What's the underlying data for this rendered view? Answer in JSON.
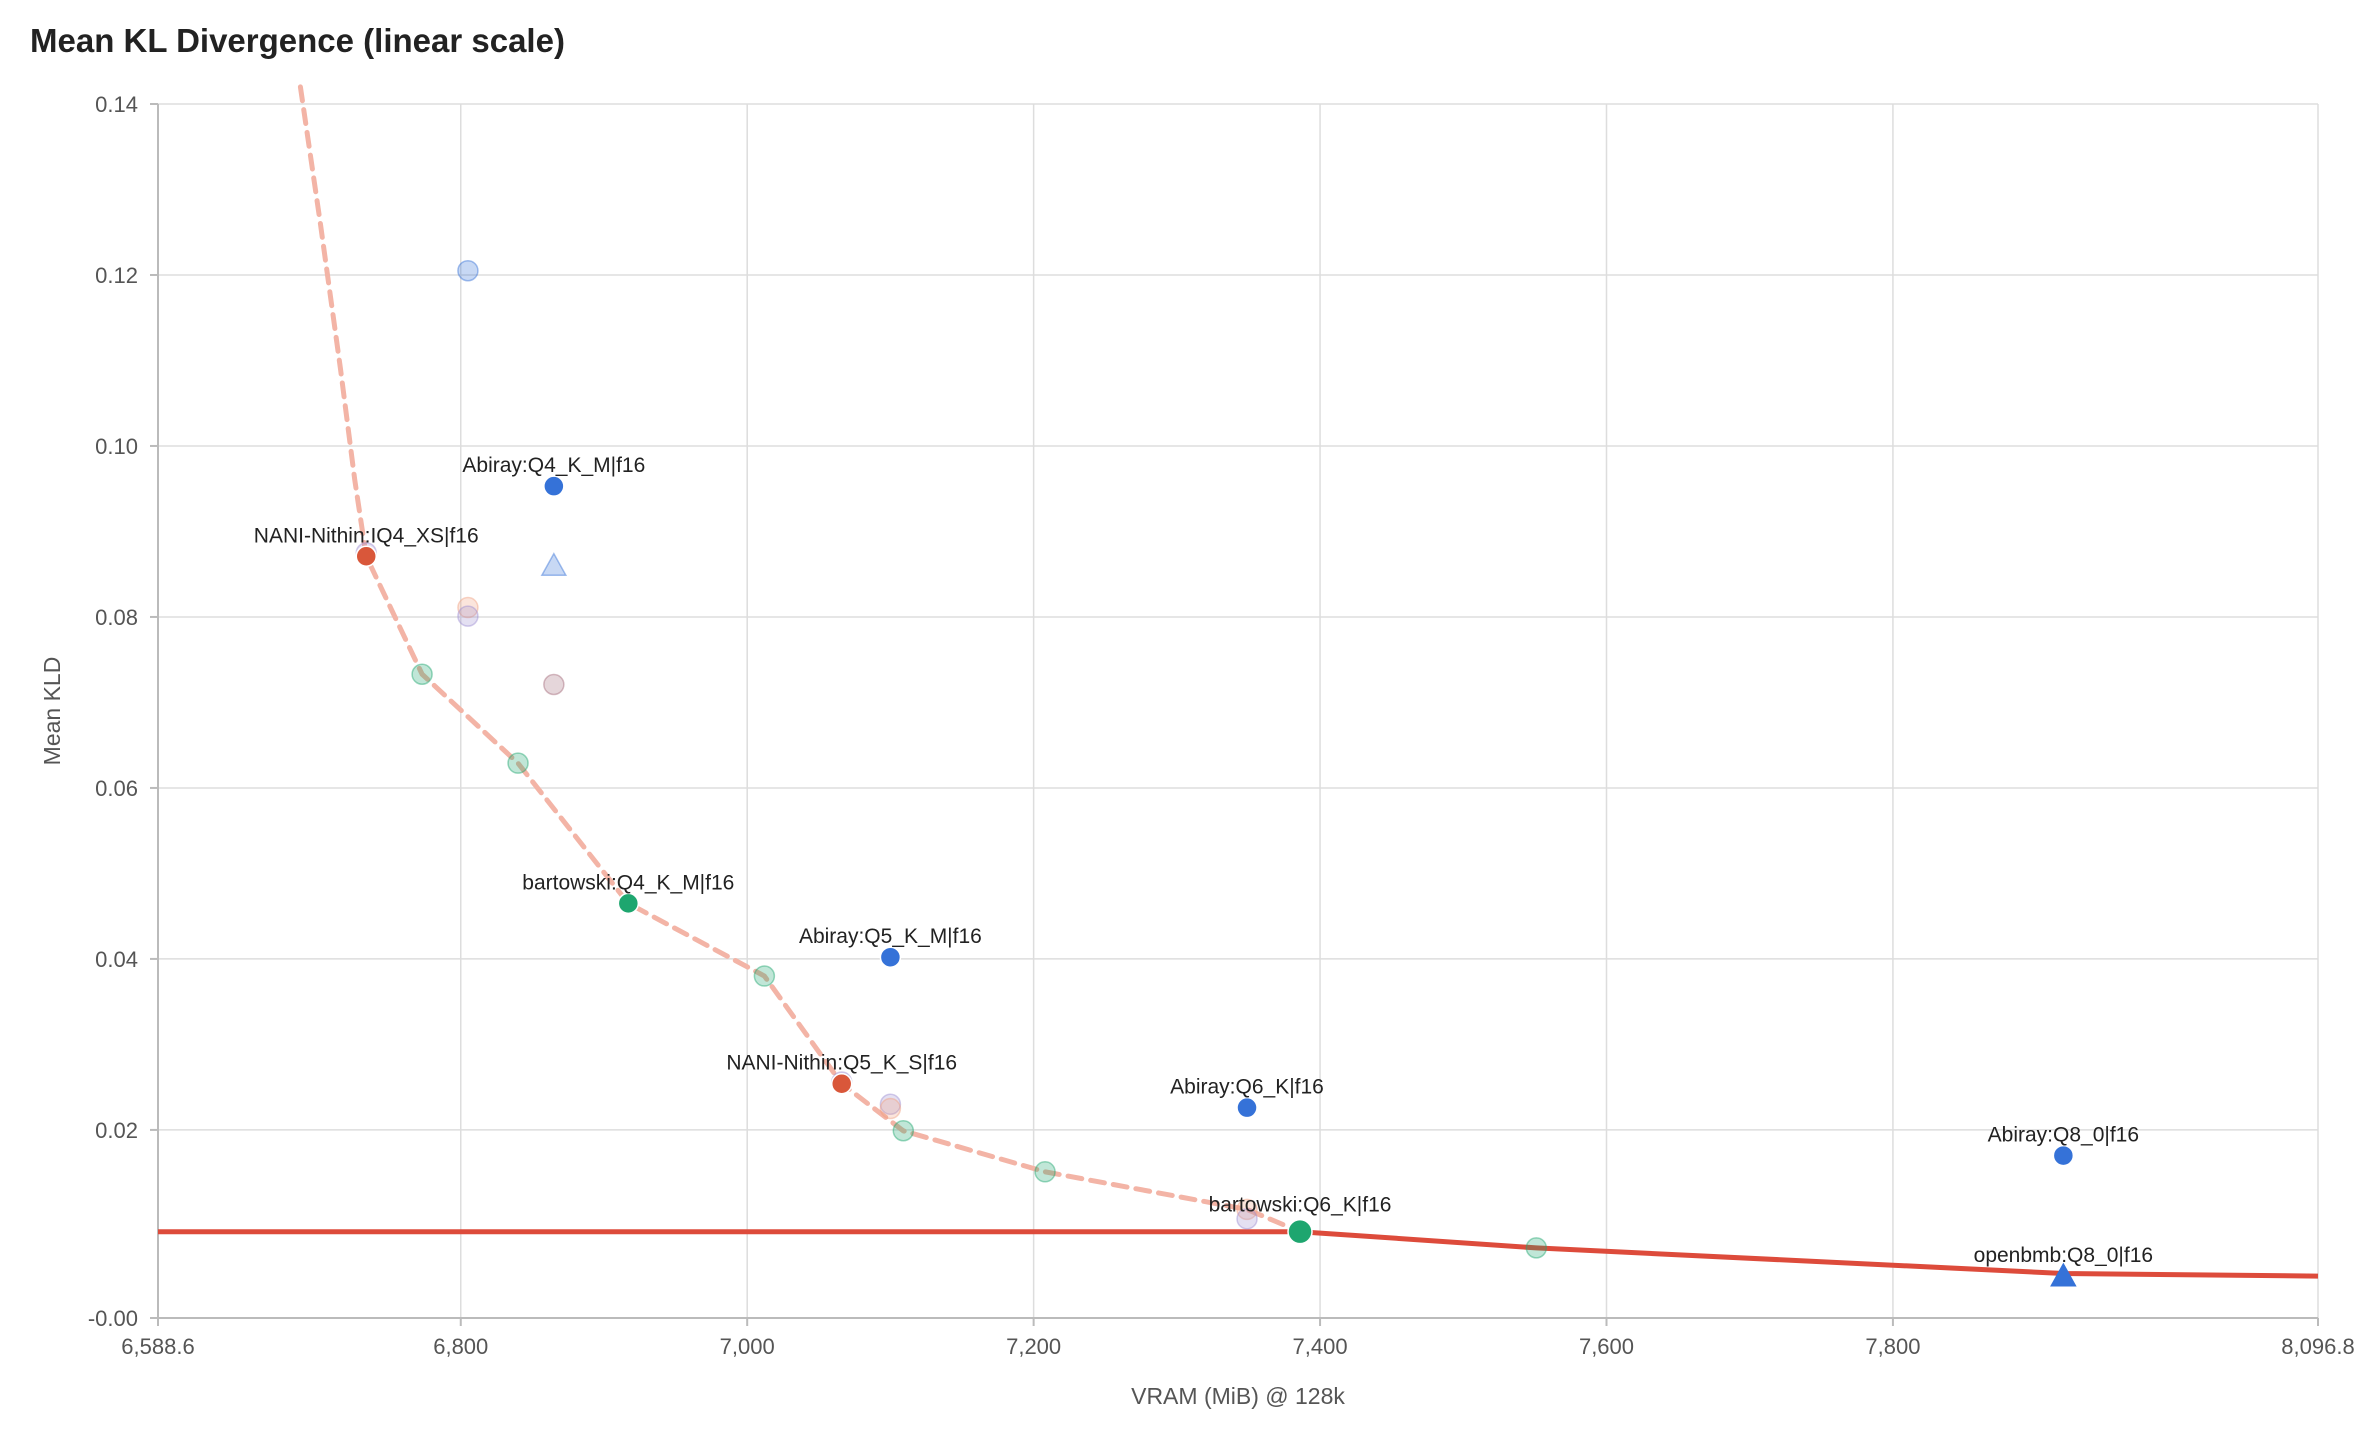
{
  "chart_data": {
    "type": "scatter",
    "title": "Mean KL Divergence (linear scale)",
    "xlabel": "VRAM (MiB) @ 128k",
    "ylabel": "Mean KLD",
    "xlim": [
      6588.6,
      8096.8
    ],
    "ylim": [
      -0.002,
      0.14
    ],
    "x_ticks": [
      {
        "value": 6588.6,
        "label": "6,588.6"
      },
      {
        "value": 6800,
        "label": "6,800"
      },
      {
        "value": 7000,
        "label": "7,000"
      },
      {
        "value": 7200,
        "label": "7,200"
      },
      {
        "value": 7400,
        "label": "7,400"
      },
      {
        "value": 7600,
        "label": "7,600"
      },
      {
        "value": 7800,
        "label": "7,800"
      },
      {
        "value": 8096.8,
        "label": "8,096.8"
      }
    ],
    "y_ticks": [
      {
        "value": -0.002,
        "label": "-0.00"
      },
      {
        "value": 0.02,
        "label": "0.02"
      },
      {
        "value": 0.04,
        "label": "0.04"
      },
      {
        "value": 0.06,
        "label": "0.06"
      },
      {
        "value": 0.08,
        "label": "0.08"
      },
      {
        "value": 0.1,
        "label": "0.10"
      },
      {
        "value": 0.12,
        "label": "0.12"
      },
      {
        "value": 0.14,
        "label": "0.14"
      }
    ],
    "grid": true,
    "colors": {
      "blue": "#3572d8",
      "red": "#d9573a",
      "green": "#1ea66f",
      "purple": "#9d8fd2",
      "orange": "#efa080",
      "mauve": "#a36b7b",
      "frontier_solid": "#dd4b3b",
      "frontier_dashed": "#f3b4a6"
    },
    "highlighted_points": [
      {
        "label": "Abiray:Q4_K_M|f16",
        "x": 6865,
        "y": 0.0953,
        "color": "blue",
        "shape": "circle"
      },
      {
        "label": "NANI-Nithin:IQ4_XS|f16",
        "x": 6734,
        "y": 0.0871,
        "color": "red",
        "shape": "circle"
      },
      {
        "label": "bartowski:Q4_K_M|f16",
        "x": 6917,
        "y": 0.0465,
        "color": "green",
        "shape": "circle"
      },
      {
        "label": "Abiray:Q5_K_M|f16",
        "x": 7100,
        "y": 0.0402,
        "color": "blue",
        "shape": "circle"
      },
      {
        "label": "NANI-Nithin:Q5_K_S|f16",
        "x": 7066,
        "y": 0.0254,
        "color": "red",
        "shape": "circle"
      },
      {
        "label": "Abiray:Q6_K|f16",
        "x": 7349,
        "y": 0.0226,
        "color": "blue",
        "shape": "circle"
      },
      {
        "label": "bartowski:Q6_K|f16",
        "x": 7386,
        "y": 0.0081,
        "color": "green",
        "shape": "circle"
      },
      {
        "label": "Abiray:Q8_0|f16",
        "x": 7919,
        "y": 0.017,
        "color": "blue",
        "shape": "circle"
      },
      {
        "label": "openbmb:Q8_0|f16",
        "x": 7919,
        "y": 0.0029,
        "color": "blue",
        "shape": "triangle"
      }
    ],
    "faded_points": [
      {
        "x": 6805,
        "y": 0.1205,
        "color": "blue",
        "shape": "circle"
      },
      {
        "x": 6865,
        "y": 0.086,
        "color": "blue",
        "shape": "triangle"
      },
      {
        "x": 6805,
        "y": 0.0811,
        "color": "orange",
        "shape": "circle"
      },
      {
        "x": 6805,
        "y": 0.0801,
        "color": "purple",
        "shape": "circle"
      },
      {
        "x": 6865,
        "y": 0.0721,
        "color": "mauve",
        "shape": "circle"
      },
      {
        "x": 6734,
        "y": 0.0875,
        "color": "purple",
        "shape": "circle"
      },
      {
        "x": 6773,
        "y": 0.0733,
        "color": "green",
        "shape": "circle"
      },
      {
        "x": 6840,
        "y": 0.0629,
        "color": "green",
        "shape": "circle"
      },
      {
        "x": 7012,
        "y": 0.038,
        "color": "green",
        "shape": "circle"
      },
      {
        "x": 7100,
        "y": 0.023,
        "color": "purple",
        "shape": "circle"
      },
      {
        "x": 7100,
        "y": 0.0225,
        "color": "orange",
        "shape": "circle"
      },
      {
        "x": 7066,
        "y": 0.0256,
        "color": "purple",
        "shape": "circle"
      },
      {
        "x": 7109,
        "y": 0.0199,
        "color": "green",
        "shape": "circle"
      },
      {
        "x": 7208,
        "y": 0.0151,
        "color": "green",
        "shape": "circle"
      },
      {
        "x": 7349,
        "y": 0.0107,
        "color": "orange",
        "shape": "circle"
      },
      {
        "x": 7349,
        "y": 0.0096,
        "color": "purple",
        "shape": "circle"
      },
      {
        "x": 7551,
        "y": 0.0062,
        "color": "green",
        "shape": "circle"
      }
    ],
    "frontier_dashed": {
      "x": [
        6688,
        6702,
        6716,
        6726,
        6734,
        6773,
        6840,
        6917,
        7012,
        7066,
        7109,
        7208,
        7349,
        7386
      ],
      "y": [
        0.142,
        0.126,
        0.109,
        0.096,
        0.0871,
        0.0733,
        0.0629,
        0.0465,
        0.038,
        0.0254,
        0.0199,
        0.0151,
        0.0107,
        0.0081
      ]
    },
    "frontier_solid": {
      "x": [
        6588.6,
        7386,
        7551,
        7919,
        8096.8
      ],
      "y": [
        0.0081,
        0.0081,
        0.0062,
        0.0032,
        0.0029
      ]
    }
  }
}
